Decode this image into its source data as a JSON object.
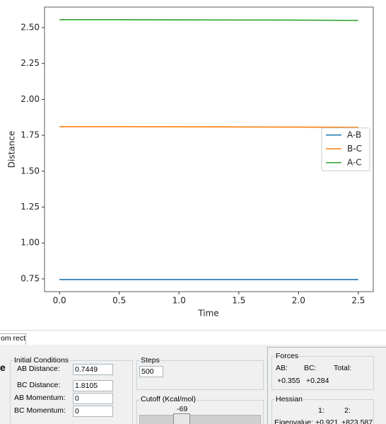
{
  "chart_data": {
    "type": "line",
    "xlabel": "Time",
    "ylabel": "Distance",
    "x": [
      0,
      0.5,
      1,
      1.5,
      2,
      2.5
    ],
    "series": [
      {
        "name": "A-B",
        "color": "#1f77b4",
        "values": [
          0.745,
          0.745,
          0.745,
          0.745,
          0.745,
          0.745
        ]
      },
      {
        "name": "B-C",
        "color": "#ff7f0e",
        "values": [
          1.81,
          1.81,
          1.809,
          1.808,
          1.807,
          1.805
        ]
      },
      {
        "name": "A-C",
        "color": "#2ca02c",
        "values": [
          2.555,
          2.555,
          2.554,
          2.553,
          2.552,
          2.55
        ]
      }
    ],
    "xlim": [
      -0.125,
      2.625
    ],
    "xticks": [
      {
        "value": 0,
        "label": "0.0"
      },
      0.5,
      {
        "value": 1,
        "label": "1.0"
      },
      1.5,
      {
        "value": 2,
        "label": "2.0"
      },
      2.5
    ],
    "ylim": [
      0.661,
      2.643
    ],
    "yticks": [
      0.75,
      {
        "value": 1,
        "label": "1.00"
      },
      {
        "value": 1.25,
        "label": "1.25"
      },
      {
        "value": 1.5,
        "label": "1.50"
      },
      1.75,
      {
        "value": 2,
        "label": "2.00"
      },
      2.25,
      {
        "value": 2.5,
        "label": "2.50"
      }
    ],
    "legend": "center right",
    "grid": false
  },
  "ui": {
    "tab": "om rect",
    "side_label": "e",
    "initial_conditions": {
      "title": "Initial Conditions",
      "rows": [
        [
          "AB Distance:",
          "0.7449"
        ],
        [
          "BC Distance:",
          "1.8105"
        ],
        [
          "AB Momentum:",
          "0"
        ],
        [
          "BC Momentum:",
          "0"
        ]
      ]
    },
    "steps": {
      "title": "Steps",
      "value": "500"
    },
    "cutoff": {
      "title": "Cutoff (Kcal/mol)",
      "value": "-69"
    },
    "forces": {
      "title": "Forces",
      "headers": [
        "AB:",
        "BC:",
        "Total:"
      ],
      "values": [
        "+0.355",
        "+0.284"
      ]
    },
    "hessian": {
      "title": "Hessian",
      "headers": [
        "1:",
        "2:"
      ],
      "row_label": "Eigenvalue:",
      "values": [
        "+0.921",
        "+823.587"
      ]
    }
  }
}
